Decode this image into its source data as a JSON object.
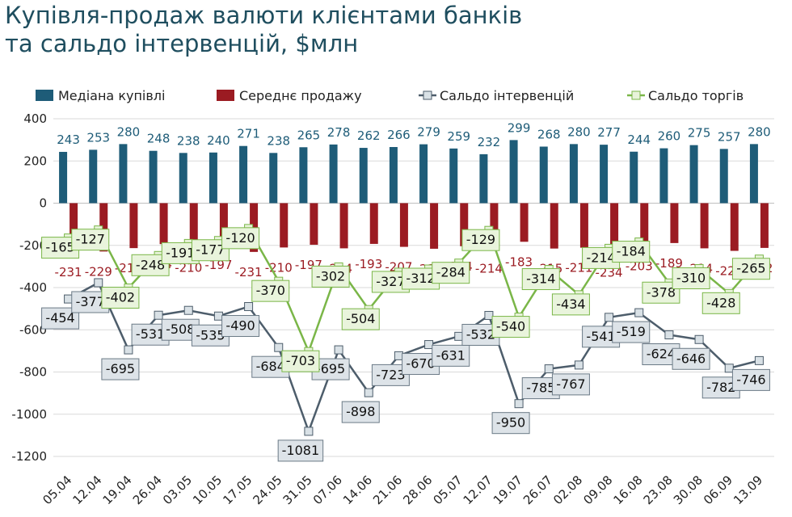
{
  "title_line1": "Купівля-продаж валюти клієнтами банків",
  "title_line2": "та сальдо інтервенцій, $млн",
  "colors": {
    "purchase": "#1e5c78",
    "sale": "#9b1b22",
    "interventions": "#4d5d6b",
    "trade": "#7ab648",
    "title": "#1f4e5f",
    "label_purchase": "#1e5c78",
    "label_sale": "#9b1b22"
  },
  "chart_data": {
    "type": "bar",
    "ylim": [
      -1200,
      400
    ],
    "yticks": [
      400,
      200,
      0,
      -200,
      -400,
      -600,
      -800,
      -1000,
      -1200
    ],
    "ytick_labels": [
      "400",
      "200",
      "0",
      "-200",
      "-400",
      "-600",
      "-800",
      "-1000",
      "-1200"
    ],
    "grid": true,
    "legend_position": "top",
    "categories": [
      "05.04",
      "12.04",
      "19.04",
      "26.04",
      "03.05",
      "10.05",
      "17.05",
      "24.05",
      "31.05",
      "07.06",
      "14.06",
      "21.06",
      "28.06",
      "05.07",
      "12.07",
      "19.07",
      "26.07",
      "02.08",
      "09.08",
      "16.08",
      "23.08",
      "30.08",
      "06.09",
      "13.09"
    ],
    "series": [
      {
        "name": "Медіана купівлі",
        "type": "bar",
        "values": [
          243,
          253,
          280,
          248,
          238,
          240,
          271,
          238,
          265,
          278,
          262,
          266,
          279,
          259,
          232,
          299,
          268,
          280,
          277,
          244,
          260,
          275,
          257,
          280
        ]
      },
      {
        "name": "Середнє продажу",
        "type": "bar",
        "values": [
          -231,
          -229,
          -213,
          -194,
          -210,
          -197,
          -231,
          -210,
          -197,
          -214,
          -193,
          -207,
          -216,
          -204,
          -214,
          -183,
          -215,
          -211,
          -234,
          -203,
          -189,
          -214,
          -226,
          -212
        ]
      },
      {
        "name": "Сальдо інтервенцій",
        "type": "line",
        "values": [
          -454,
          -377,
          -695,
          -531,
          -508,
          -535,
          -490,
          -684,
          -1081,
          -695,
          -898,
          -723,
          -670,
          -631,
          -532,
          -950,
          -785,
          -767,
          -541,
          -519,
          -624,
          -646,
          -782,
          -746
        ]
      },
      {
        "name": "Сальдо торгів",
        "type": "line",
        "values": [
          -165,
          -127,
          -402,
          -248,
          -191,
          -177,
          -120,
          -370,
          -703,
          -302,
          -504,
          -327,
          -312,
          -284,
          -129,
          -540,
          -314,
          -434,
          -214,
          -184,
          -378,
          -310,
          -428,
          -265
        ]
      }
    ]
  }
}
